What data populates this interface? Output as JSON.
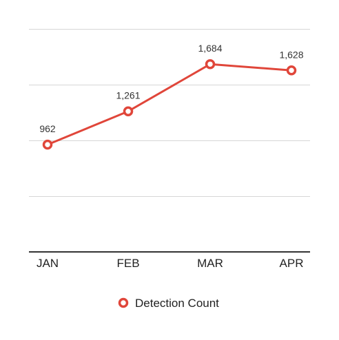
{
  "chart_data": {
    "type": "line",
    "categories": [
      "JAN",
      "FEB",
      "MAR",
      "APR"
    ],
    "series": [
      {
        "name": "Detection Count",
        "values": [
          962,
          1261,
          1684,
          1628
        ],
        "labels": [
          "962",
          "1,261",
          "1,684",
          "1,628"
        ],
        "color": "#e0463a"
      }
    ],
    "ylim": [
      0,
      2000
    ],
    "gridlines": [
      500,
      1000,
      1500
    ],
    "grid": true,
    "legend": "bottom-center",
    "title": "",
    "xlabel": "",
    "ylabel": ""
  },
  "colors": {
    "series": "#e0463a",
    "grid": "#d6d6d6",
    "axis": "#333333",
    "text": "#222222",
    "background": "#ffffff"
  }
}
